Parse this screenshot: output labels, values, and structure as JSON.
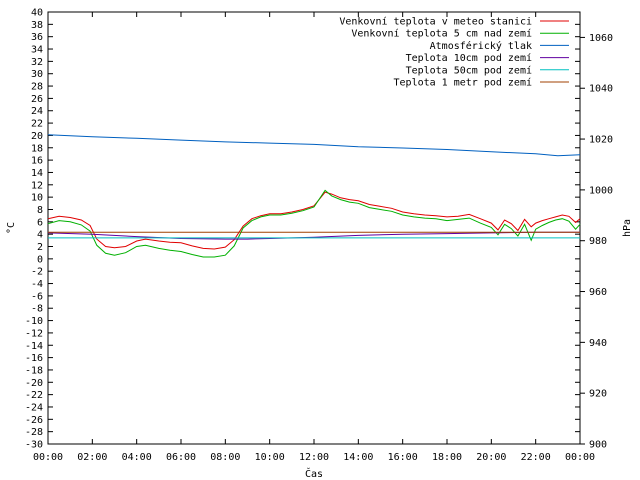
{
  "chart_data": {
    "type": "line",
    "title": "",
    "xlabel": "Čas",
    "ylabel": "°C",
    "y2label": "hPa",
    "xlim": [
      0,
      24
    ],
    "ylim": [
      -30,
      40
    ],
    "y2lim": [
      900,
      1070
    ],
    "grid": false,
    "legend_position": "top-right",
    "x_ticks": [
      "00:00",
      "02:00",
      "04:00",
      "06:00",
      "08:00",
      "10:00",
      "12:00",
      "14:00",
      "16:00",
      "18:00",
      "20:00",
      "22:00",
      "00:00"
    ],
    "y_ticks": [
      -30,
      -28,
      -26,
      -24,
      -22,
      -20,
      -18,
      -16,
      -14,
      -12,
      -10,
      -8,
      -6,
      -4,
      -2,
      0,
      2,
      4,
      6,
      8,
      10,
      12,
      14,
      16,
      18,
      20,
      22,
      24,
      26,
      28,
      30,
      32,
      34,
      36,
      38,
      40
    ],
    "y2_ticks": [
      900,
      920,
      940,
      960,
      980,
      1000,
      1020,
      1040,
      1060
    ],
    "series": [
      {
        "name": "Venkovní teplota v meteo stanici",
        "color": "#e00000",
        "axis": "y",
        "x": [
          0,
          0.5,
          1,
          1.5,
          1.9,
          2.2,
          2.6,
          3.0,
          3.5,
          4.0,
          4.4,
          5.0,
          5.5,
          6.0,
          6.5,
          7.0,
          7.5,
          8.0,
          8.4,
          8.8,
          9.2,
          9.6,
          10.0,
          10.5,
          11.0,
          11.5,
          12.0,
          12.5,
          12.8,
          13.2,
          13.6,
          14.0,
          14.5,
          15.0,
          15.5,
          16.0,
          16.5,
          17.0,
          17.5,
          18.0,
          18.5,
          19.0,
          19.5,
          20.0,
          20.3,
          20.6,
          20.9,
          21.2,
          21.5,
          21.8,
          22.0,
          22.3,
          22.6,
          22.9,
          23.2,
          23.5,
          23.8,
          24.0
        ],
        "values": [
          6.5,
          6.9,
          6.7,
          6.3,
          5.4,
          3.2,
          2.0,
          1.8,
          2.0,
          2.9,
          3.2,
          2.9,
          2.7,
          2.6,
          2.1,
          1.7,
          1.6,
          1.9,
          3.1,
          5.3,
          6.5,
          7.0,
          7.3,
          7.3,
          7.6,
          8.0,
          8.6,
          10.8,
          10.5,
          9.9,
          9.6,
          9.4,
          8.8,
          8.5,
          8.2,
          7.6,
          7.3,
          7.1,
          7.0,
          6.8,
          6.9,
          7.2,
          6.5,
          5.8,
          4.7,
          6.3,
          5.7,
          4.6,
          6.4,
          5.2,
          5.8,
          6.2,
          6.5,
          6.8,
          7.1,
          6.9,
          5.9,
          6.5
        ]
      },
      {
        "name": "Venkovní teplota 5 cm nad zemí",
        "color": "#00b000",
        "axis": "y",
        "x": [
          0,
          0.5,
          1,
          1.5,
          1.9,
          2.2,
          2.6,
          3.0,
          3.5,
          4.0,
          4.4,
          5.0,
          5.5,
          6.0,
          6.5,
          7.0,
          7.5,
          8.0,
          8.4,
          8.8,
          9.2,
          9.6,
          10.0,
          10.5,
          11.0,
          11.5,
          12.0,
          12.5,
          12.8,
          13.2,
          13.6,
          14.0,
          14.5,
          15.0,
          15.5,
          16.0,
          16.5,
          17.0,
          17.5,
          18.0,
          18.5,
          19.0,
          19.5,
          20.0,
          20.3,
          20.6,
          20.9,
          21.2,
          21.5,
          21.8,
          22.0,
          22.3,
          22.6,
          22.9,
          23.2,
          23.5,
          23.8,
          24.0
        ],
        "values": [
          5.7,
          6.2,
          6.0,
          5.5,
          4.5,
          2.2,
          0.9,
          0.6,
          1.0,
          2.0,
          2.2,
          1.7,
          1.4,
          1.2,
          0.7,
          0.3,
          0.3,
          0.6,
          2.1,
          5.0,
          6.2,
          6.8,
          7.1,
          7.1,
          7.4,
          7.8,
          8.4,
          11.1,
          10.2,
          9.6,
          9.2,
          9.0,
          8.3,
          8.0,
          7.7,
          7.1,
          6.8,
          6.6,
          6.5,
          6.2,
          6.4,
          6.6,
          5.8,
          5.1,
          3.9,
          5.6,
          4.9,
          3.7,
          5.6,
          3.0,
          4.8,
          5.4,
          5.9,
          6.3,
          6.5,
          6.1,
          4.8,
          5.6
        ]
      },
      {
        "name": "Atmosférický tlak",
        "color": "#0060c0",
        "axis": "y2",
        "x": [
          0,
          2,
          4,
          6,
          8,
          10,
          12,
          14,
          16,
          18,
          20,
          21,
          22,
          23,
          24
        ],
        "values": [
          1021.7,
          1020.9,
          1020.3,
          1019.6,
          1018.9,
          1018.4,
          1017.9,
          1017.0,
          1016.5,
          1015.9,
          1015.0,
          1014.6,
          1014.2,
          1013.4,
          1013.8
        ]
      },
      {
        "name": "Teplota 10cm pod zemí",
        "color": "#6000a0",
        "axis": "y",
        "x": [
          0,
          2,
          4,
          6,
          8,
          9,
          10,
          12,
          14,
          16,
          18,
          20,
          22,
          24
        ],
        "values": [
          4.2,
          4.0,
          3.6,
          3.3,
          3.2,
          3.2,
          3.3,
          3.5,
          3.8,
          4.0,
          4.1,
          4.2,
          4.3,
          4.3
        ]
      },
      {
        "name": "Teplota 50cm pod zemí",
        "color": "#00c0c0",
        "axis": "y",
        "x": [
          0,
          24
        ],
        "values": [
          3.4,
          3.4
        ]
      },
      {
        "name": "Teplota 1 metr pod zemí",
        "color": "#a04000",
        "axis": "y",
        "x": [
          0,
          24
        ],
        "values": [
          4.3,
          4.3
        ]
      }
    ]
  }
}
